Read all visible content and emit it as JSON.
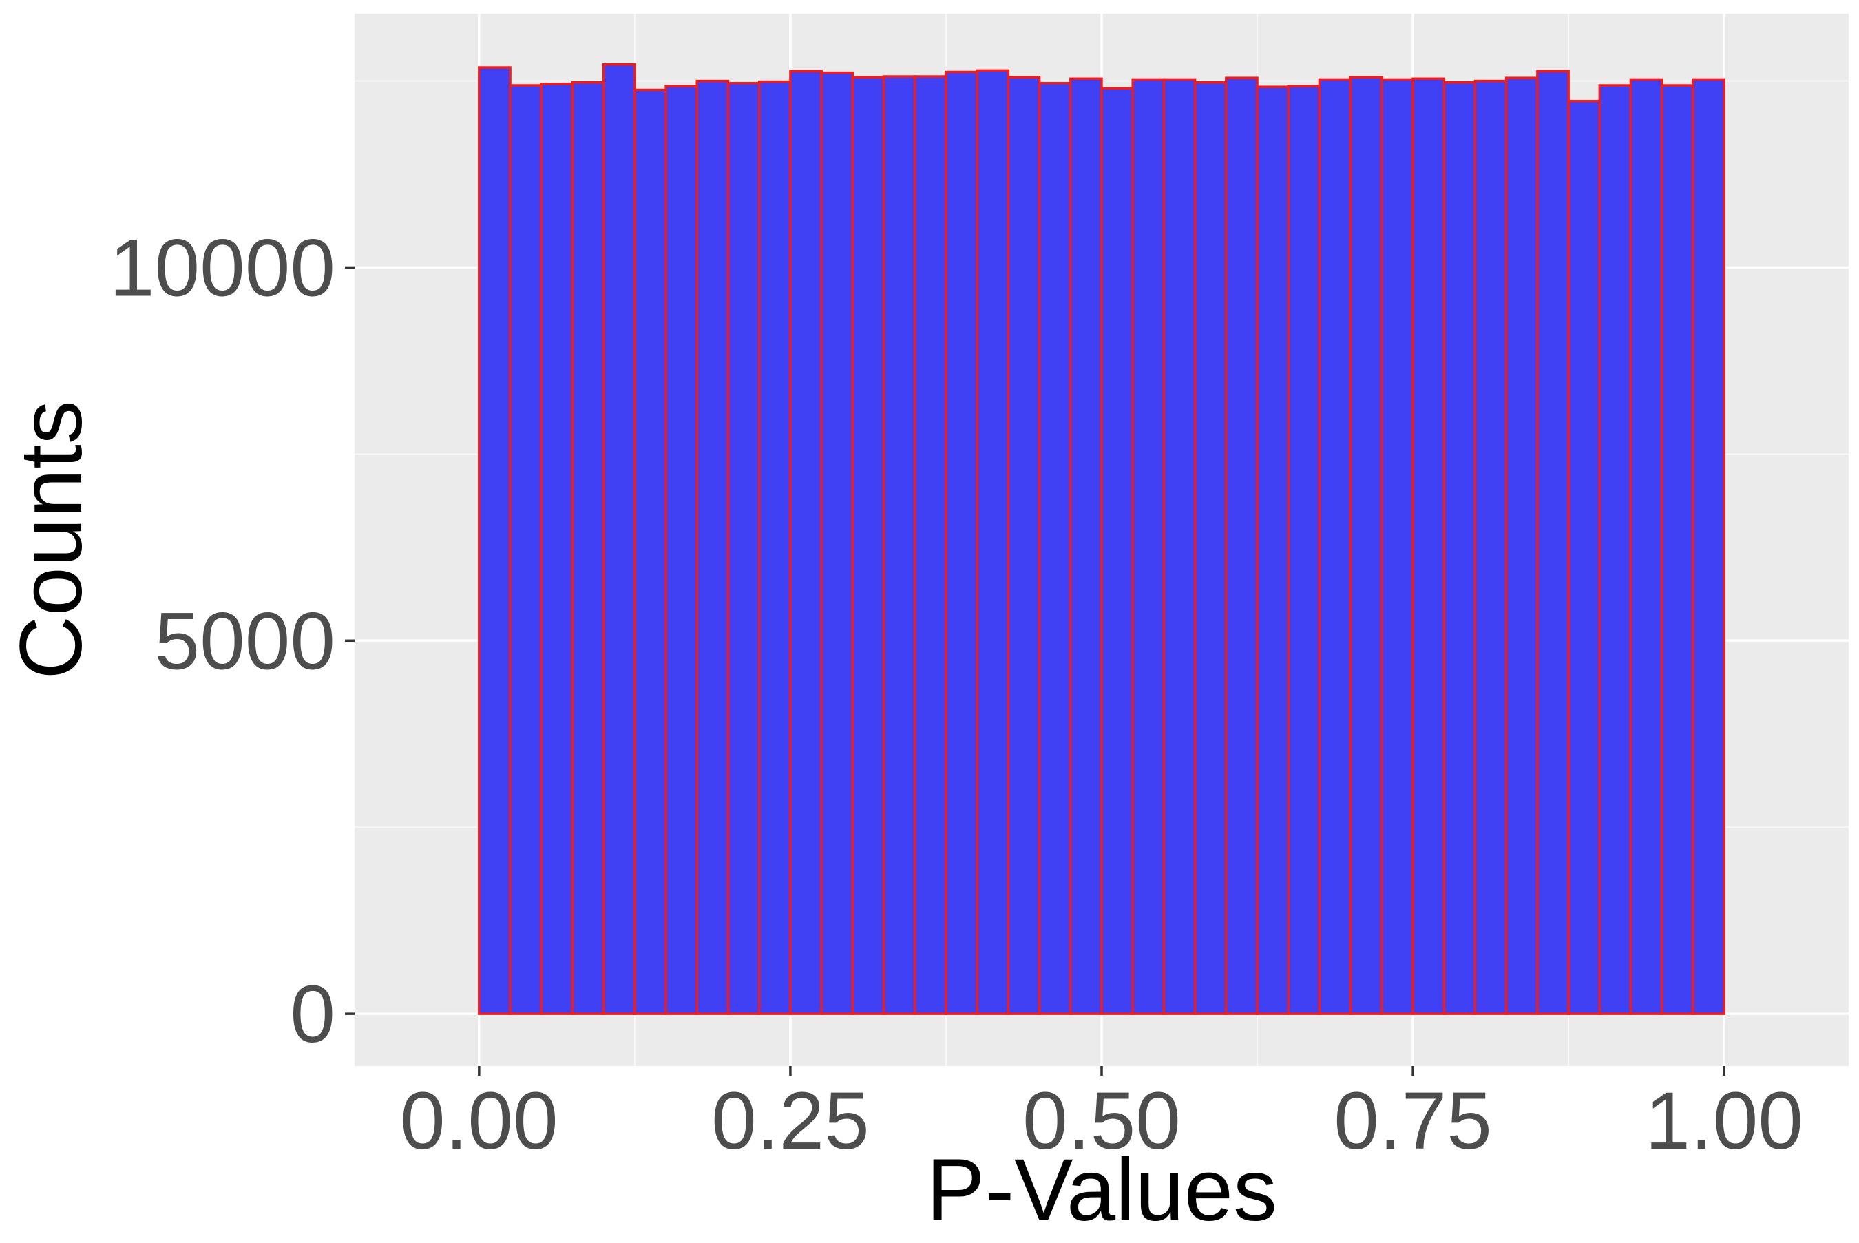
{
  "chart_data": {
    "type": "bar",
    "title": "",
    "xlabel": "P-Values",
    "ylabel": "Counts",
    "xlim": [
      -0.1,
      1.1
    ],
    "ylim": [
      -700,
      13400
    ],
    "x_ticks": [
      0.0,
      0.25,
      0.5,
      0.75,
      1.0
    ],
    "x_tick_labels": [
      "0.00",
      "0.25",
      "0.50",
      "0.75",
      "1.00"
    ],
    "y_ticks": [
      0,
      5000,
      10000
    ],
    "y_tick_labels": [
      "0",
      "5000",
      "10000"
    ],
    "grid": true,
    "bins": 40,
    "bin_range": [
      0.0,
      1.0
    ],
    "values": [
      12680,
      12440,
      12460,
      12480,
      12720,
      12380,
      12430,
      12500,
      12470,
      12490,
      12630,
      12610,
      12550,
      12560,
      12560,
      12620,
      12640,
      12550,
      12470,
      12530,
      12400,
      12520,
      12520,
      12480,
      12540,
      12420,
      12430,
      12520,
      12550,
      12520,
      12530,
      12480,
      12500,
      12540,
      12630,
      12230,
      12440,
      12520,
      12440,
      12520
    ],
    "colors": {
      "bar_fill": "#4040f5",
      "bar_edge": "#ee1c1c",
      "panel_background": "#ebebeb",
      "grid_major": "#ffffff",
      "grid_minor": "#f7f7f7",
      "tick_text": "#4d4d4d",
      "tick_mark": "#333333",
      "axis_title": "#000000"
    }
  }
}
